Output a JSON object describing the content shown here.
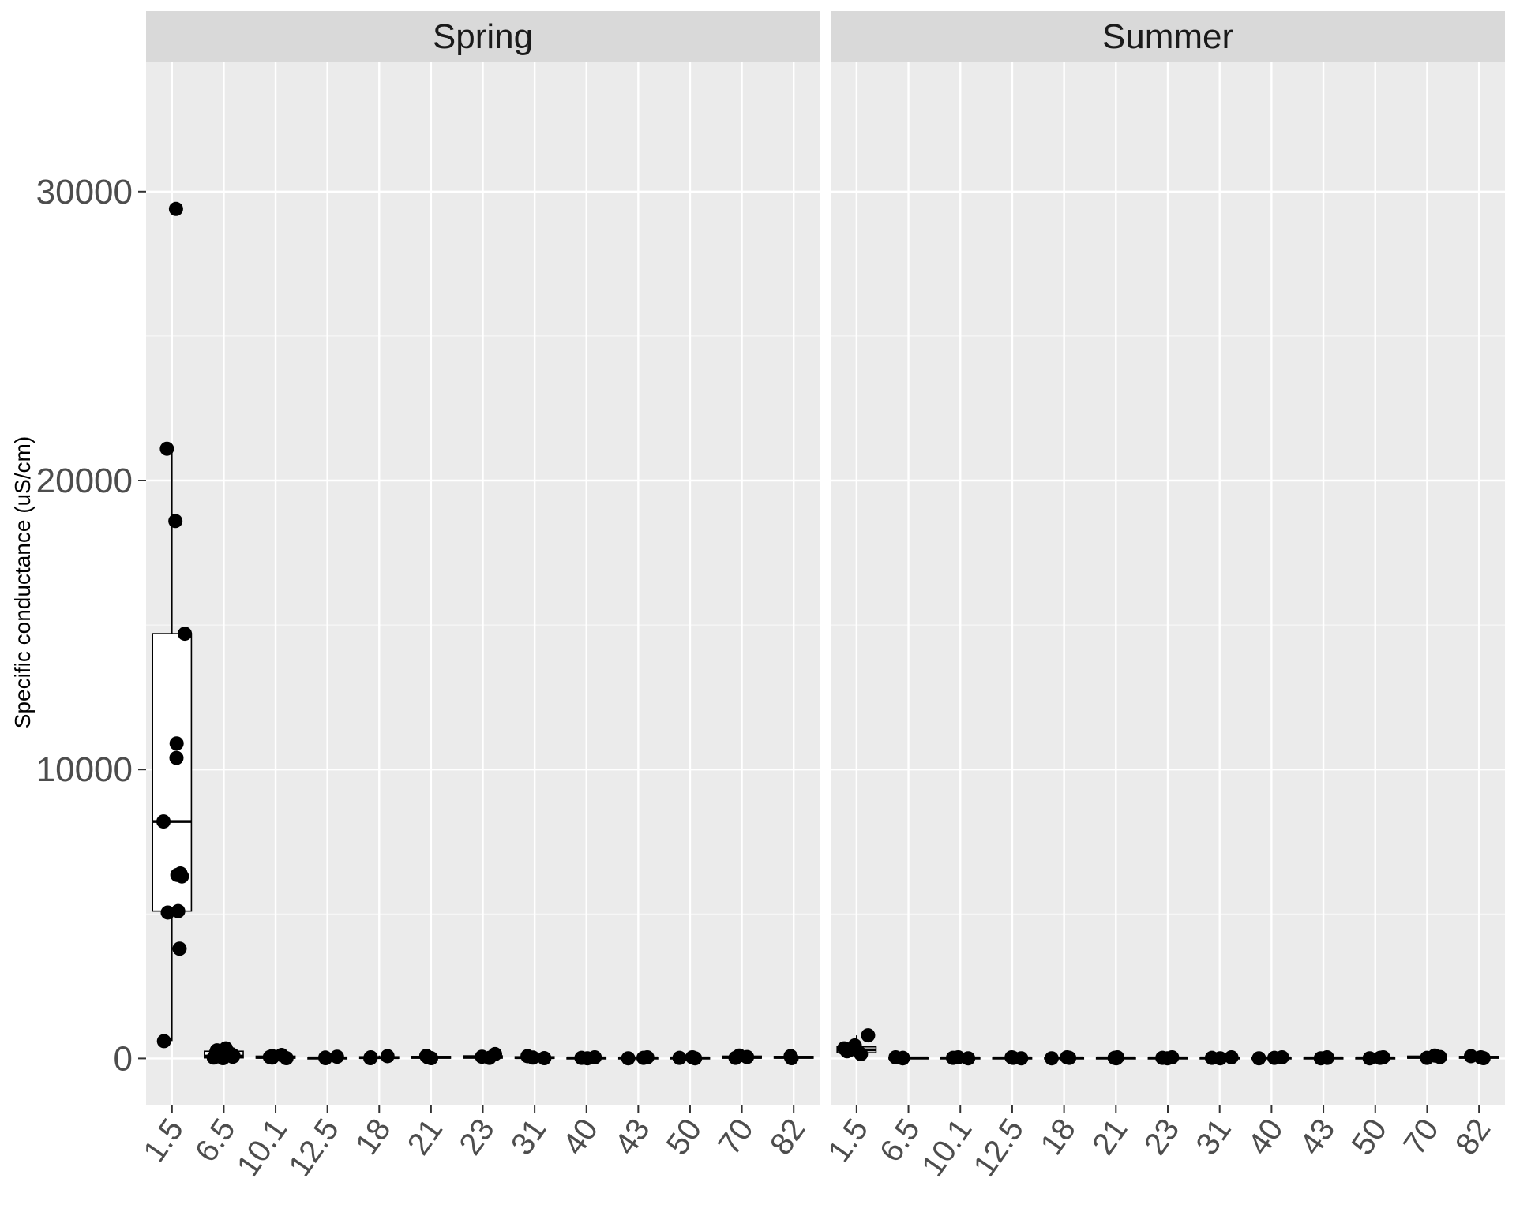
{
  "chart_data": {
    "type": "boxplot",
    "ylabel": "Specific conductance (uS/cm)",
    "xlabel": "",
    "ylim": [
      -1600,
      34500
    ],
    "y_ticks": [
      0,
      10000,
      20000,
      30000
    ],
    "y_tick_labels": [
      "0",
      "10000",
      "20000",
      "30000"
    ],
    "categories": [
      "1.5",
      "6.5",
      "10.1",
      "12.5",
      "18",
      "21",
      "23",
      "31",
      "40",
      "43",
      "50",
      "70",
      "82"
    ],
    "grid": true,
    "colors": {
      "panel_bg": "#ebebeb",
      "strip_bg": "#d9d9d9",
      "grid": "#ffffff",
      "points": "#000000",
      "box_fill": "#ffffff",
      "box_line": "#000000"
    },
    "panels": [
      {
        "label": "Spring",
        "boxes": [
          {
            "category": "1.5",
            "min": 600,
            "q1": 5100,
            "median": 8200,
            "q3": 14700,
            "max": 21100,
            "points": [
              29400,
              21100,
              18600,
              14700,
              10900,
              10400,
              8200,
              6300,
              6350,
              6400,
              5100,
              5050,
              3800,
              600
            ]
          },
          {
            "category": "6.5",
            "min": 0,
            "q1": 20,
            "median": 80,
            "q3": 250,
            "max": 400,
            "points": [
              350,
              280,
              220,
              150,
              100,
              60,
              30,
              10
            ]
          },
          {
            "category": "10.1",
            "min": 0,
            "q1": 10,
            "median": 40,
            "q3": 80,
            "max": 150,
            "points": [
              120,
              80,
              50,
              30,
              10
            ]
          },
          {
            "category": "12.5",
            "min": 0,
            "q1": 5,
            "median": 20,
            "q3": 40,
            "max": 80,
            "points": [
              60,
              30,
              10
            ]
          },
          {
            "category": "18",
            "min": 0,
            "q1": 10,
            "median": 30,
            "q3": 60,
            "max": 100,
            "points": [
              80,
              40,
              10
            ]
          },
          {
            "category": "21",
            "min": 0,
            "q1": 10,
            "median": 40,
            "q3": 70,
            "max": 120,
            "points": [
              90,
              40,
              10
            ]
          },
          {
            "category": "23",
            "min": 0,
            "q1": 10,
            "median": 50,
            "q3": 90,
            "max": 180,
            "points": [
              150,
              60,
              20
            ]
          },
          {
            "category": "31",
            "min": 0,
            "q1": 10,
            "median": 30,
            "q3": 60,
            "max": 100,
            "points": [
              80,
              30,
              10
            ]
          },
          {
            "category": "40",
            "min": 0,
            "q1": 5,
            "median": 20,
            "q3": 40,
            "max": 60,
            "points": [
              40,
              20,
              5
            ]
          },
          {
            "category": "43",
            "min": 0,
            "q1": 5,
            "median": 20,
            "q3": 40,
            "max": 60,
            "points": [
              40,
              20,
              5
            ]
          },
          {
            "category": "50",
            "min": 0,
            "q1": 5,
            "median": 20,
            "q3": 40,
            "max": 60,
            "points": [
              40,
              20,
              5
            ]
          },
          {
            "category": "70",
            "min": 0,
            "q1": 10,
            "median": 40,
            "q3": 80,
            "max": 120,
            "points": [
              100,
              50,
              20
            ]
          },
          {
            "category": "82",
            "min": 0,
            "q1": 10,
            "median": 40,
            "q3": 70,
            "max": 100,
            "points": [
              80,
              40,
              10
            ]
          }
        ]
      },
      {
        "label": "Summer",
        "boxes": [
          {
            "category": "1.5",
            "min": 100,
            "q1": 200,
            "median": 300,
            "q3": 400,
            "max": 800,
            "points": [
              800,
              450,
              350,
              300,
              250,
              150
            ]
          },
          {
            "category": "6.5",
            "min": 0,
            "q1": 5,
            "median": 20,
            "q3": 40,
            "max": 60,
            "points": [
              40,
              20,
              5
            ]
          },
          {
            "category": "10.1",
            "min": 0,
            "q1": 5,
            "median": 20,
            "q3": 40,
            "max": 60,
            "points": [
              40,
              20,
              5
            ]
          },
          {
            "category": "12.5",
            "min": 0,
            "q1": 5,
            "median": 20,
            "q3": 40,
            "max": 60,
            "points": [
              40,
              20,
              5
            ]
          },
          {
            "category": "18",
            "min": 0,
            "q1": 5,
            "median": 20,
            "q3": 40,
            "max": 60,
            "points": [
              40,
              20,
              5
            ]
          },
          {
            "category": "21",
            "min": 0,
            "q1": 5,
            "median": 20,
            "q3": 40,
            "max": 60,
            "points": [
              40,
              20,
              5
            ]
          },
          {
            "category": "23",
            "min": 0,
            "q1": 5,
            "median": 20,
            "q3": 40,
            "max": 60,
            "points": [
              40,
              20,
              5
            ]
          },
          {
            "category": "31",
            "min": 0,
            "q1": 5,
            "median": 20,
            "q3": 40,
            "max": 60,
            "points": [
              40,
              20,
              5
            ]
          },
          {
            "category": "40",
            "min": 0,
            "q1": 5,
            "median": 20,
            "q3": 40,
            "max": 60,
            "points": [
              40,
              20,
              5
            ]
          },
          {
            "category": "43",
            "min": 0,
            "q1": 5,
            "median": 20,
            "q3": 40,
            "max": 60,
            "points": [
              40,
              20,
              5
            ]
          },
          {
            "category": "50",
            "min": 0,
            "q1": 5,
            "median": 20,
            "q3": 40,
            "max": 60,
            "points": [
              40,
              20,
              5
            ]
          },
          {
            "category": "70",
            "min": 0,
            "q1": 10,
            "median": 40,
            "q3": 80,
            "max": 120,
            "points": [
              100,
              50,
              20
            ]
          },
          {
            "category": "82",
            "min": 0,
            "q1": 10,
            "median": 40,
            "q3": 70,
            "max": 100,
            "points": [
              80,
              40,
              10
            ]
          }
        ]
      }
    ]
  }
}
